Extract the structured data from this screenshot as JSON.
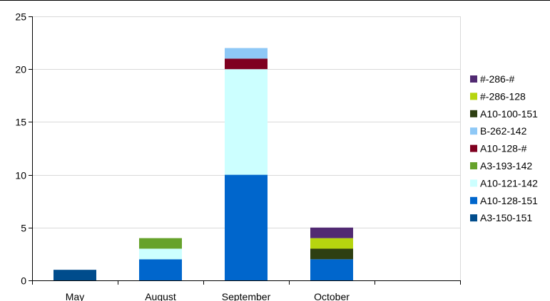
{
  "chart_data": {
    "type": "bar",
    "stacked": true,
    "categories": [
      "May",
      "August",
      "September",
      "October",
      ""
    ],
    "ylim": [
      0,
      25
    ],
    "yticks": [
      0,
      5,
      10,
      15,
      20,
      25
    ],
    "grid": true,
    "legend_position": "right",
    "series": [
      {
        "name": "A3-150-151",
        "color": "#004C8C",
        "values": [
          1,
          0,
          0,
          0,
          0
        ]
      },
      {
        "name": "A10-128-151",
        "color": "#0066CC",
        "values": [
          0,
          2,
          10,
          2,
          0
        ]
      },
      {
        "name": "A10-121-142",
        "color": "#CCFFFF",
        "values": [
          0,
          1,
          10,
          0,
          0
        ]
      },
      {
        "name": "A3-193-142",
        "color": "#66A22B",
        "values": [
          0,
          1,
          0,
          0,
          0
        ]
      },
      {
        "name": "A10-128-#",
        "color": "#7F0020",
        "values": [
          0,
          0,
          1,
          0,
          0
        ]
      },
      {
        "name": "B-262-142",
        "color": "#8EC8F6",
        "values": [
          0,
          0,
          1,
          0,
          0
        ]
      },
      {
        "name": "A10-100-151",
        "color": "#2E3F12",
        "values": [
          0,
          0,
          0,
          1,
          0
        ]
      },
      {
        "name": "#-286-128",
        "color": "#B6D50F",
        "values": [
          0,
          0,
          0,
          1,
          0
        ]
      },
      {
        "name": "#-286-#",
        "color": "#512A72",
        "values": [
          0,
          0,
          0,
          1,
          0
        ]
      }
    ]
  }
}
